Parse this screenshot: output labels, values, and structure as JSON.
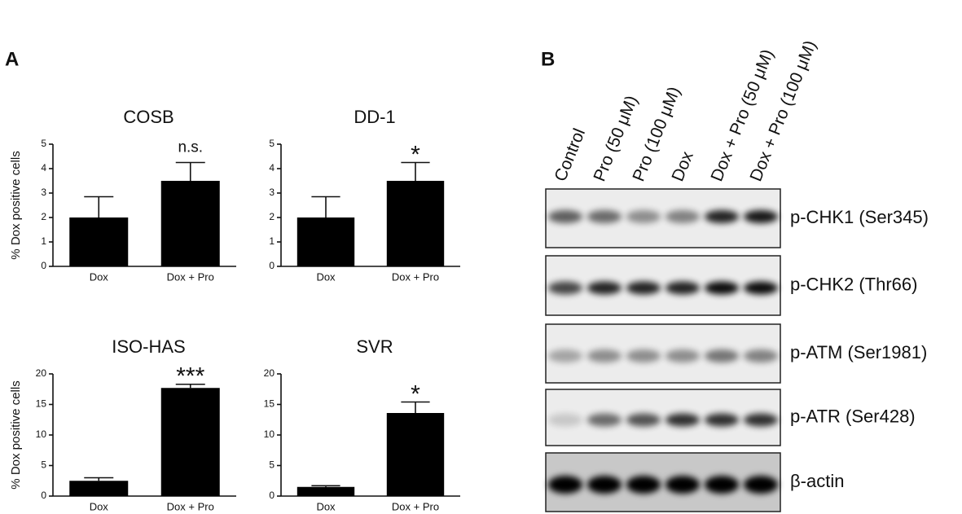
{
  "panel_labels": [
    "A",
    "B"
  ],
  "chart_data": [
    {
      "type": "bar",
      "title": "COSB",
      "ylabel": "% Dox positive cells",
      "categories": [
        "Dox",
        "Dox + Pro"
      ],
      "values": [
        2,
        3.5
      ],
      "errors": [
        0.85,
        0.75
      ],
      "annotations": [
        null,
        "n.s."
      ],
      "color": "#000000",
      "ylim": [
        0,
        5
      ],
      "yticks": [
        0,
        1,
        2,
        3,
        4,
        5
      ]
    },
    {
      "type": "bar",
      "title": "DD-1",
      "categories": [
        "Dox",
        "Dox + Pro"
      ],
      "values": [
        2,
        3.5
      ],
      "errors": [
        0.85,
        0.75
      ],
      "annotations": [
        null,
        "*"
      ],
      "color": "#000000",
      "ylim": [
        0,
        5
      ],
      "yticks": [
        0,
        1,
        2,
        3,
        4,
        5
      ]
    },
    {
      "type": "bar",
      "title": "ISO-HAS",
      "ylabel": "% Dox positive cells",
      "categories": [
        "Dox",
        "Dox + Pro"
      ],
      "values": [
        2.5,
        17.7
      ],
      "errors": [
        0.5,
        0.6
      ],
      "annotations": [
        null,
        "***"
      ],
      "color": "#000000",
      "ylim": [
        0,
        20
      ],
      "yticks": [
        0,
        5,
        10,
        15,
        20
      ]
    },
    {
      "type": "bar",
      "title": "SVR",
      "categories": [
        "Dox",
        "Dox + Pro"
      ],
      "values": [
        1.5,
        13.6
      ],
      "errors": [
        0.2,
        1.8
      ],
      "annotations": [
        null,
        "*"
      ],
      "color": "#000000",
      "ylim": [
        0,
        20
      ],
      "yticks": [
        0,
        5,
        10,
        15,
        20
      ]
    }
  ],
  "blot": {
    "lanes": [
      "Control",
      "Pro (50 μM)",
      "Pro (100 μM)",
      "Dox",
      "Dox + Pro (50 μM)",
      "Dox + Pro (100 μM)"
    ],
    "rows": [
      "p-CHK1 (Ser345)",
      "p-CHK2 (Thr66)",
      "p-ATM (Ser1981)",
      "p-ATR (Ser428)",
      "β-actin"
    ]
  }
}
